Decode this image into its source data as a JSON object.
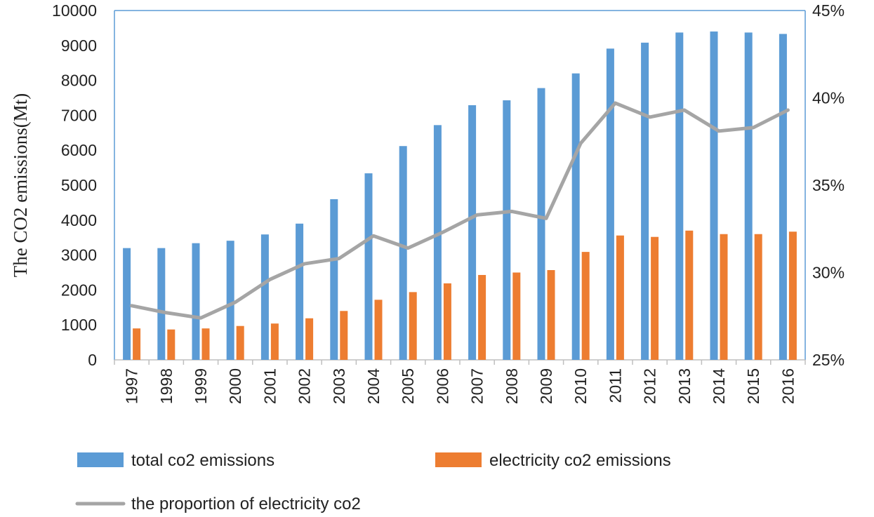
{
  "chart_data": {
    "type": "bar",
    "title": "",
    "xlabel": "",
    "ylabel": "The  CO2 emissions(Mt)",
    "ylim": [
      0,
      10000
    ],
    "y_ticks": [
      "0",
      "1000",
      "2000",
      "3000",
      "4000",
      "5000",
      "6000",
      "7000",
      "8000",
      "9000",
      "10000"
    ],
    "y2lim": [
      0.25,
      0.45
    ],
    "y2_ticks": [
      "25%",
      "30%",
      "35%",
      "40%",
      "45%"
    ],
    "categories": [
      "1997",
      "1998",
      "1999",
      "2000",
      "2001",
      "2002",
      "2003",
      "2004",
      "2005",
      "2006",
      "2007",
      "2008",
      "2009",
      "2010",
      "2011",
      "2012",
      "2013",
      "2014",
      "2015",
      "2016"
    ],
    "series": [
      {
        "name": "total co2 emissions",
        "type": "bar",
        "axis": "left",
        "color": "#5B9BD5",
        "values": [
          3200,
          3200,
          3340,
          3410,
          3590,
          3900,
          4600,
          5340,
          6120,
          6720,
          7290,
          7430,
          7780,
          8200,
          8910,
          9080,
          9370,
          9400,
          9370,
          9330
        ]
      },
      {
        "name": "electricity co2 emissions",
        "type": "bar",
        "axis": "left",
        "color": "#ED7D31",
        "values": [
          900,
          870,
          900,
          970,
          1040,
          1190,
          1400,
          1720,
          1940,
          2190,
          2430,
          2500,
          2570,
          3090,
          3560,
          3520,
          3700,
          3600,
          3600,
          3670
        ]
      },
      {
        "name": "the proportion of electricity co2",
        "type": "line",
        "axis": "right",
        "color": "#A5A5A5",
        "values": [
          0.281,
          0.277,
          0.274,
          0.283,
          0.296,
          0.305,
          0.308,
          0.321,
          0.314,
          0.323,
          0.333,
          0.335,
          0.331,
          0.374,
          0.397,
          0.389,
          0.393,
          0.381,
          0.383,
          0.393
        ]
      }
    ],
    "legend": "bottom"
  }
}
